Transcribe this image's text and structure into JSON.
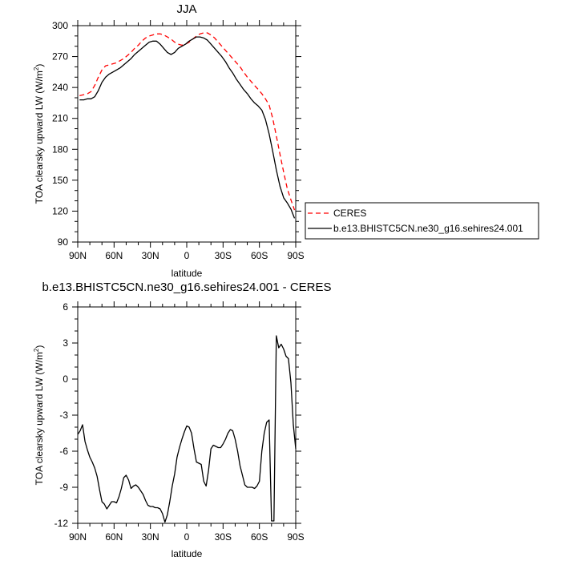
{
  "chart_data": [
    {
      "type": "line",
      "title": "JJA",
      "xlabel": "latitude",
      "ylabel": "TOA clearsky upward LW (W/m",
      "ylabel_sup": "2",
      "ylabel_tail": ")",
      "xlim": [
        90,
        -90
      ],
      "ylim": [
        90,
        300
      ],
      "xticks": [
        {
          "value": 90,
          "label": "90N"
        },
        {
          "value": 60,
          "label": "60N"
        },
        {
          "value": 30,
          "label": "30N"
        },
        {
          "value": 0,
          "label": "0"
        },
        {
          "value": -30,
          "label": "30S"
        },
        {
          "value": -60,
          "label": "60S"
        },
        {
          "value": -90,
          "label": "90S"
        }
      ],
      "yticks": [
        90,
        120,
        150,
        180,
        210,
        240,
        270,
        300
      ],
      "legend": {
        "position": "right"
      },
      "series": [
        {
          "name": "CERES",
          "color": "#ff0000",
          "dash": "dashed",
          "x": [
            88.5,
            85,
            82,
            79,
            76,
            73,
            70,
            67,
            64,
            61,
            58,
            55,
            52,
            49,
            46,
            43,
            40,
            37,
            34,
            31,
            28,
            25,
            22,
            19,
            16,
            13,
            10,
            7,
            4,
            1,
            -2,
            -5,
            -8,
            -11,
            -14,
            -17,
            -20,
            -23,
            -26,
            -29,
            -32,
            -35,
            -38,
            -41,
            -44,
            -47,
            -50,
            -53,
            -56,
            -59,
            -62,
            -65,
            -68,
            -71,
            -74,
            -77,
            -80,
            -83,
            -86,
            -89
          ],
          "y": [
            232,
            233,
            234,
            236,
            242,
            250,
            257,
            261,
            262,
            263,
            264,
            266,
            268,
            271,
            274,
            278,
            281,
            285,
            288,
            290,
            291,
            292,
            292,
            291,
            289,
            287,
            284,
            282,
            281,
            282,
            284,
            287,
            290,
            292,
            293,
            293,
            291,
            288,
            284,
            280,
            276,
            272,
            268,
            264,
            260,
            255,
            250,
            246,
            242,
            238,
            234,
            229,
            223,
            210,
            193,
            175,
            158,
            142,
            131,
            121
          ]
        },
        {
          "name": "b.e13.BHISTC5CN.ne30_g16.sehires24.001",
          "color": "#000000",
          "dash": "solid",
          "x": [
            88.5,
            85,
            82,
            79,
            76,
            73,
            70,
            67,
            64,
            61,
            58,
            55,
            52,
            49,
            46,
            43,
            40,
            37,
            34,
            31,
            28,
            25,
            22,
            19,
            16,
            13,
            10,
            7,
            4,
            1,
            -2,
            -5,
            -8,
            -11,
            -14,
            -17,
            -20,
            -23,
            -26,
            -29,
            -32,
            -35,
            -38,
            -41,
            -44,
            -47,
            -50,
            -53,
            -56,
            -59,
            -62,
            -65,
            -68,
            -71,
            -74,
            -77,
            -80,
            -83,
            -86,
            -89
          ],
          "y": [
            228,
            228,
            229,
            229,
            231,
            237,
            245,
            250,
            253,
            255,
            257,
            259,
            262,
            265,
            268,
            272,
            275,
            278,
            281,
            284,
            285,
            285,
            282,
            278,
            274,
            272,
            274,
            278,
            280,
            282,
            285,
            287,
            289,
            289,
            288,
            286,
            282,
            278,
            274,
            270,
            265,
            259,
            254,
            248,
            243,
            238,
            234,
            229,
            225,
            222,
            218,
            209,
            195,
            178,
            160,
            144,
            133,
            128,
            122,
            113
          ]
        }
      ]
    },
    {
      "type": "line",
      "title": "b.e13.BHISTC5CN.ne30_g16.sehires24.001 - CERES",
      "xlabel": "latitude",
      "ylabel": "TOA clearsky upward LW (W/m",
      "ylabel_sup": "2",
      "ylabel_tail": ")",
      "xlim": [
        90,
        -90
      ],
      "ylim": [
        -12,
        6
      ],
      "xticks": [
        {
          "value": 90,
          "label": "90N"
        },
        {
          "value": 60,
          "label": "60N"
        },
        {
          "value": 30,
          "label": "30N"
        },
        {
          "value": 0,
          "label": "0"
        },
        {
          "value": -30,
          "label": "30S"
        },
        {
          "value": -60,
          "label": "60S"
        },
        {
          "value": -90,
          "label": "90S"
        }
      ],
      "yticks": [
        {
          "value": 6,
          "label": "6"
        },
        {
          "value": 3,
          "label": "3"
        },
        {
          "value": 0,
          "label": "0"
        },
        {
          "value": -3,
          "label": "-3"
        },
        {
          "value": -6,
          "label": "-6"
        },
        {
          "value": -9,
          "label": "-9"
        },
        {
          "value": -12,
          "label": "-12"
        }
      ],
      "series": [
        {
          "color": "#000000",
          "x": [
            90,
            88,
            86,
            84,
            82,
            80,
            78,
            76,
            74,
            72,
            70,
            68,
            66,
            64,
            62,
            60,
            58,
            56,
            54,
            52,
            50,
            48,
            46,
            44,
            42,
            40,
            38,
            36,
            34,
            32,
            30,
            28,
            26,
            24,
            22,
            20,
            18,
            16,
            14,
            12,
            10,
            8,
            6,
            4,
            2,
            0,
            -2,
            -4,
            -6,
            -8,
            -10,
            -12,
            -14,
            -16,
            -18,
            -20,
            -22,
            -24,
            -26,
            -28,
            -30,
            -32,
            -34,
            -36,
            -38,
            -40,
            -42,
            -44,
            -46,
            -48,
            -50,
            -52,
            -54,
            -56,
            -58,
            -60,
            -62,
            -64,
            -66,
            -68,
            -70,
            -72,
            -74,
            -76,
            -78,
            -80,
            -82,
            -84,
            -86,
            -88,
            -90
          ],
          "y": [
            -4.6,
            -4.3,
            -3.8,
            -5.2,
            -5.9,
            -6.5,
            -6.9,
            -7.4,
            -8.1,
            -9.2,
            -10.2,
            -10.4,
            -10.8,
            -10.5,
            -10.2,
            -10.2,
            -10.3,
            -9.8,
            -9.1,
            -8.2,
            -8.0,
            -8.4,
            -9.1,
            -8.9,
            -8.8,
            -9.0,
            -9.3,
            -9.6,
            -10.1,
            -10.5,
            -10.6,
            -10.6,
            -10.7,
            -10.7,
            -10.8,
            -11.2,
            -11.9,
            -11.3,
            -10.2,
            -8.9,
            -7.9,
            -6.5,
            -5.7,
            -5.0,
            -4.4,
            -3.9,
            -4.0,
            -4.5,
            -5.8,
            -6.9,
            -7.0,
            -7.1,
            -8.5,
            -8.9,
            -7.6,
            -5.8,
            -5.5,
            -5.6,
            -5.7,
            -5.7,
            -5.4,
            -5.0,
            -4.5,
            -4.2,
            -4.3,
            -5.0,
            -6.0,
            -7.2,
            -8.0,
            -8.8,
            -9.0,
            -9.0,
            -9.0,
            -9.1,
            -8.9,
            -8.5,
            -6.0,
            -4.5,
            -3.6,
            -3.4,
            -11.8,
            -11.8,
            3.6,
            2.6,
            2.9,
            2.5,
            1.9,
            1.7,
            -0.3,
            -3.8,
            -5.8
          ]
        }
      ]
    }
  ]
}
